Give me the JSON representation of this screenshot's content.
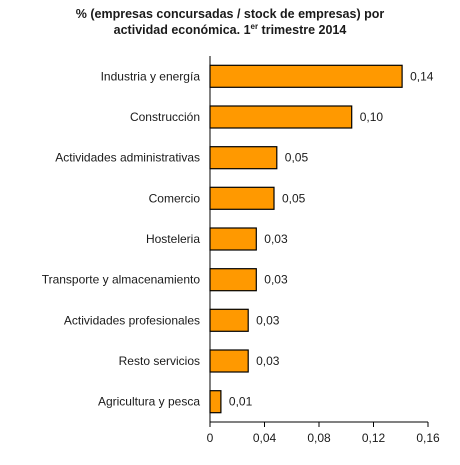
{
  "chart_data": {
    "type": "bar",
    "orientation": "horizontal",
    "title_line1": "% (empresas concursadas / stock de empresas) por",
    "title_line2_pre": "actividad económica. 1",
    "title_line2_sup": "er",
    "title_line2_post": " trimestre 2014",
    "categories": [
      "Industria y energía",
      "Construcción",
      "Actividades administrativas",
      "Comercio",
      "Hosteleria",
      "Transporte y almacenamiento",
      "Actividades profesionales",
      "Resto servicios",
      "Agricultura y pesca"
    ],
    "values": [
      0.14,
      0.1,
      0.05,
      0.05,
      0.03,
      0.03,
      0.03,
      0.03,
      0.01
    ],
    "bar_values": [
      0.141,
      0.104,
      0.049,
      0.047,
      0.034,
      0.034,
      0.028,
      0.028,
      0.008
    ],
    "value_labels": [
      "0,14",
      "0,10",
      "0,05",
      "0,05",
      "0,03",
      "0,03",
      "0,03",
      "0,03",
      "0,01"
    ],
    "xlim": [
      0,
      0.16
    ],
    "ticks": [
      0,
      0.04,
      0.08,
      0.12,
      0.16
    ],
    "tick_labels": [
      "0",
      "0,04",
      "0,08",
      "0,12",
      "0,16"
    ],
    "grid": false,
    "legend": "none",
    "bar_color": "#FF9900",
    "bar_edge_color": "#000000"
  }
}
